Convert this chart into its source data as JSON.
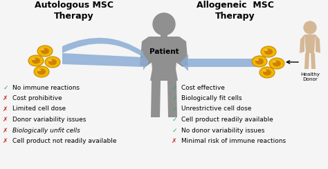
{
  "title_left": "Autologous MSC\nTherapy",
  "title_right": "Allogeneic  MSC\nTherapy",
  "center_label": "Patient",
  "donor_label": "Healthy\nDonor",
  "left_items": [
    {
      "check": true,
      "text": "No immune reactions"
    },
    {
      "check": false,
      "text": "Cost prohibitive"
    },
    {
      "check": false,
      "text": "Limited cell dose"
    },
    {
      "check": false,
      "text": "Donor variability issues"
    },
    {
      "check": false,
      "text": "Biologically unfit cells"
    },
    {
      "check": false,
      "text": "Cell product not readily available"
    }
  ],
  "right_items": [
    {
      "check": true,
      "text": "Cost effective"
    },
    {
      "check": true,
      "text": "Biologically fit cells"
    },
    {
      "check": true,
      "text": "Unrestrictive cell dose"
    },
    {
      "check": true,
      "text": "Cell product readily available"
    },
    {
      "check": true,
      "text": "No donor variability issues"
    },
    {
      "check": false,
      "text": "Minimal risk of immune reactions"
    }
  ],
  "bg_color": "#f5f5f5",
  "arrow_color": "#8badd4",
  "body_color": "#909090",
  "donor_color": "#d4b896",
  "check_color": "#33aa55",
  "cross_color": "#cc2222",
  "title_fontsize": 9,
  "item_fontsize": 6.5,
  "label_fontsize": 7
}
